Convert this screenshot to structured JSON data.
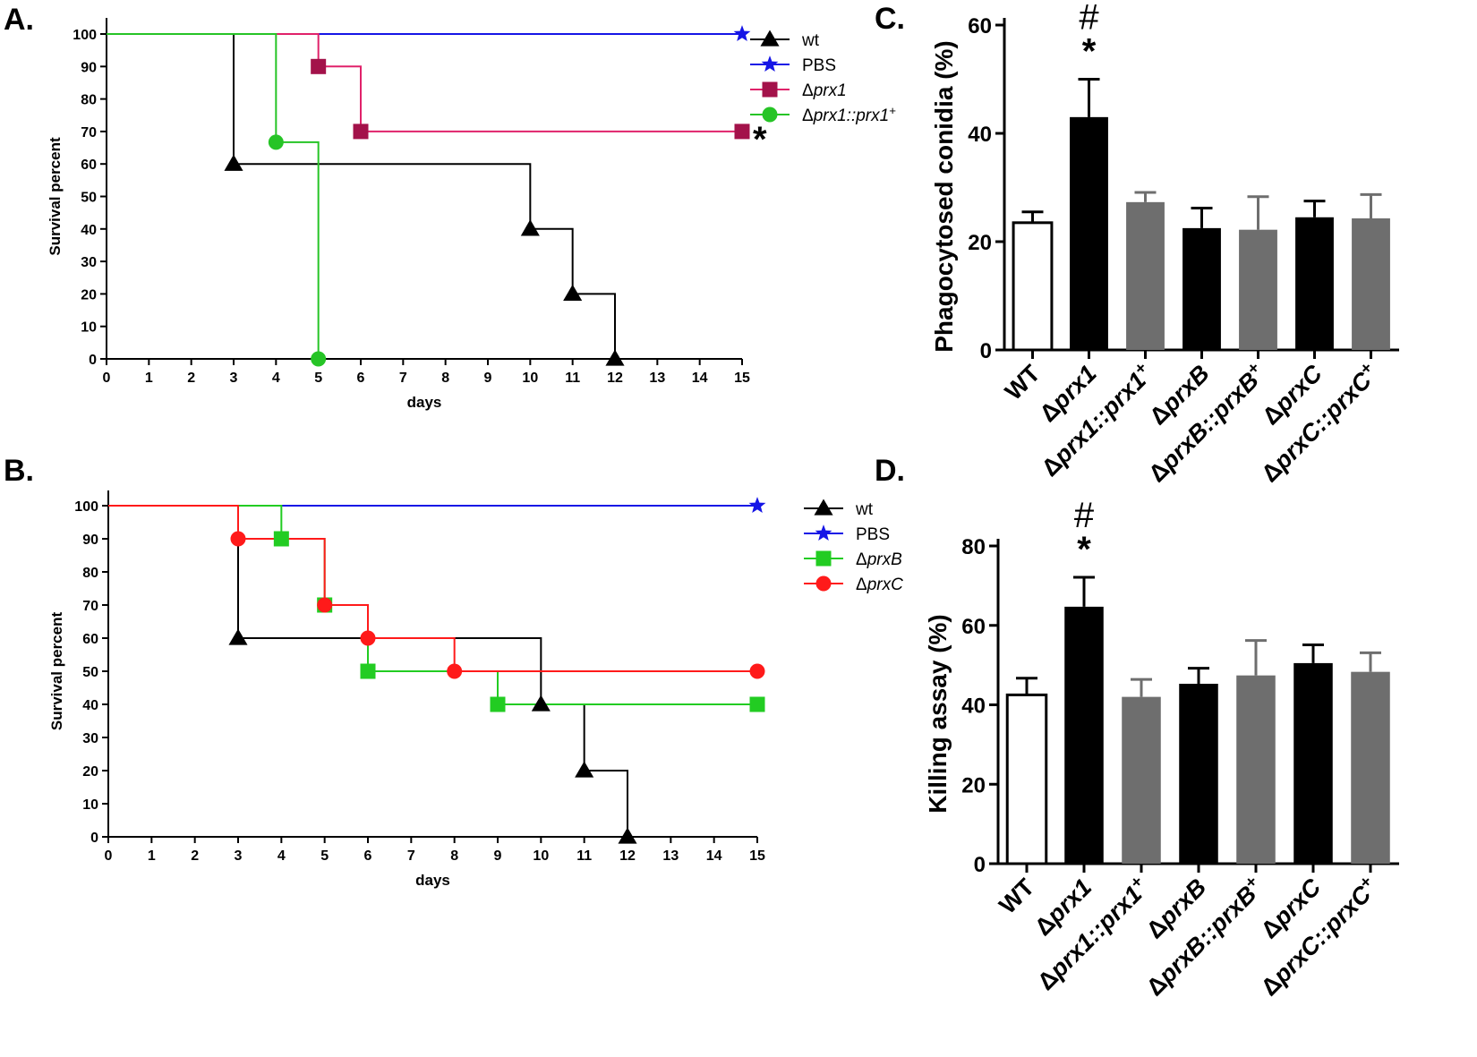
{
  "colors": {
    "wt": "#000000",
    "PBS": "#1515e6",
    "prx1": "#a3124a",
    "prx1_line": "#e0226a",
    "prx1comp": "#26c426",
    "prxB": "#22cc22",
    "prxC": "#ff1a1a",
    "bar_black": "#000000",
    "bar_gray": "#6e6e6e",
    "bar_white": "#ffffff"
  },
  "chart_data": [
    {
      "id": "A",
      "panel_label": "A.",
      "type": "line",
      "subtype": "kaplan-meier",
      "xlabel": "days",
      "ylabel": "Survival percent",
      "xlim": [
        0,
        15
      ],
      "ylim": [
        0,
        100
      ],
      "xticks": [
        0,
        1,
        2,
        3,
        4,
        5,
        6,
        7,
        8,
        9,
        10,
        11,
        12,
        13,
        14,
        15
      ],
      "yticks": [
        0,
        10,
        20,
        30,
        40,
        50,
        60,
        70,
        80,
        90,
        100
      ],
      "significance_label": "*",
      "series": [
        {
          "key": "wt",
          "name": "wt",
          "marker": "triangle",
          "steps": [
            [
              0,
              100
            ],
            [
              3,
              60
            ],
            [
              10,
              40
            ],
            [
              11,
              20
            ],
            [
              12,
              0
            ]
          ],
          "markers": [
            [
              3,
              60
            ],
            [
              10,
              40
            ],
            [
              11,
              20
            ],
            [
              12,
              0
            ]
          ]
        },
        {
          "key": "PBS",
          "name": "PBS",
          "marker": "star",
          "steps": [
            [
              0,
              100
            ],
            [
              15,
              100
            ]
          ],
          "markers": [
            [
              15,
              100
            ]
          ]
        },
        {
          "key": "prx1",
          "name": "Δprx1",
          "marker": "square",
          "steps": [
            [
              0,
              100
            ],
            [
              5,
              90
            ],
            [
              6,
              70
            ],
            [
              15,
              70
            ]
          ],
          "markers": [
            [
              5,
              90
            ],
            [
              6,
              70
            ],
            [
              15,
              70
            ]
          ]
        },
        {
          "key": "prx1comp",
          "name": "Δprx1::prx1+",
          "marker": "circle",
          "steps": [
            [
              0,
              100
            ],
            [
              4,
              66.7
            ],
            [
              5,
              0
            ]
          ],
          "markers": [
            [
              4,
              66.7
            ],
            [
              5,
              0
            ]
          ]
        }
      ],
      "legend": [
        {
          "key": "wt",
          "pre": "",
          "italic": "",
          "sup": "",
          "plain": "wt"
        },
        {
          "key": "PBS",
          "pre": "",
          "italic": "",
          "sup": "",
          "plain": "PBS"
        },
        {
          "key": "prx1",
          "pre": "Δ",
          "italic": "prx1",
          "sup": "",
          "plain": ""
        },
        {
          "key": "prx1comp",
          "pre": "Δ",
          "italic": "prx1::prx1",
          "sup": "+",
          "plain": ""
        }
      ]
    },
    {
      "id": "B",
      "panel_label": "B.",
      "type": "line",
      "subtype": "kaplan-meier",
      "xlabel": "days",
      "ylabel": "Survival percent",
      "xlim": [
        0,
        15
      ],
      "ylim": [
        0,
        100
      ],
      "xticks": [
        0,
        1,
        2,
        3,
        4,
        5,
        6,
        7,
        8,
        9,
        10,
        11,
        12,
        13,
        14,
        15
      ],
      "yticks": [
        0,
        10,
        20,
        30,
        40,
        50,
        60,
        70,
        80,
        90,
        100
      ],
      "series": [
        {
          "key": "wt",
          "name": "wt",
          "marker": "triangle",
          "steps": [
            [
              0,
              100
            ],
            [
              3,
              60
            ],
            [
              10,
              40
            ],
            [
              11,
              20
            ],
            [
              12,
              0
            ]
          ],
          "markers": [
            [
              3,
              60
            ],
            [
              10,
              40
            ],
            [
              11,
              20
            ],
            [
              12,
              0
            ]
          ]
        },
        {
          "key": "PBS",
          "name": "PBS",
          "marker": "star",
          "steps": [
            [
              0,
              100
            ],
            [
              15,
              100
            ]
          ],
          "markers": [
            [
              15,
              100
            ]
          ]
        },
        {
          "key": "prxB",
          "name": "ΔprxB",
          "marker": "square",
          "steps": [
            [
              0,
              100
            ],
            [
              4,
              90
            ],
            [
              5,
              70
            ],
            [
              6,
              50
            ],
            [
              9,
              40
            ],
            [
              15,
              40
            ]
          ],
          "markers": [
            [
              4,
              90
            ],
            [
              5,
              70
            ],
            [
              6,
              50
            ],
            [
              9,
              40
            ],
            [
              15,
              40
            ]
          ]
        },
        {
          "key": "prxC",
          "name": "ΔprxC",
          "marker": "circle",
          "steps": [
            [
              0,
              100
            ],
            [
              3,
              90
            ],
            [
              5,
              70
            ],
            [
              6,
              60
            ],
            [
              8,
              50
            ],
            [
              15,
              50
            ]
          ],
          "markers": [
            [
              3,
              90
            ],
            [
              5,
              70
            ],
            [
              6,
              60
            ],
            [
              8,
              50
            ],
            [
              15,
              50
            ]
          ]
        }
      ],
      "legend": [
        {
          "key": "wt",
          "pre": "",
          "italic": "",
          "sup": "",
          "plain": "wt"
        },
        {
          "key": "PBS",
          "pre": "",
          "italic": "",
          "sup": "",
          "plain": "PBS"
        },
        {
          "key": "prxB",
          "pre": "Δ",
          "italic": "prxB",
          "sup": "",
          "plain": ""
        },
        {
          "key": "prxC",
          "pre": "Δ",
          "italic": "prxC",
          "sup": "",
          "plain": ""
        }
      ]
    },
    {
      "id": "C",
      "panel_label": "C.",
      "type": "bar",
      "ylabel": "Phagocytosed conidia (%)",
      "ylim": [
        0,
        60
      ],
      "yticks": [
        0,
        20,
        40,
        60
      ],
      "annotation": {
        "index": 1,
        "hash": "#",
        "star": "*"
      },
      "categories": [
        {
          "pre": "WT",
          "italic": "",
          "sup": ""
        },
        {
          "pre": "Δ",
          "italic": "prx1",
          "sup": ""
        },
        {
          "pre": "Δ",
          "italic": "prx1::prx1",
          "sup": "+"
        },
        {
          "pre": "Δ",
          "italic": "prxB",
          "sup": ""
        },
        {
          "pre": "Δ",
          "italic": "prxB::prxB",
          "sup": "+"
        },
        {
          "pre": "Δ",
          "italic": "prxC",
          "sup": ""
        },
        {
          "pre": "Δ",
          "italic": "prxC::prxC",
          "sup": "+"
        }
      ],
      "values": [
        23.5,
        43,
        27.3,
        22.5,
        22.2,
        24.5,
        24.3
      ],
      "errors": [
        2,
        7,
        1.8,
        3.7,
        6.1,
        3,
        4.4
      ],
      "fills": [
        "white",
        "black",
        "gray",
        "black",
        "gray",
        "black",
        "gray"
      ]
    },
    {
      "id": "D",
      "panel_label": "D.",
      "type": "bar",
      "ylabel": "Killing assay (%)",
      "ylim": [
        0,
        80
      ],
      "yticks": [
        0,
        20,
        40,
        60,
        80
      ],
      "annotation": {
        "index": 1,
        "hash": "#",
        "star": "*"
      },
      "categories": [
        {
          "pre": "WT",
          "italic": "",
          "sup": ""
        },
        {
          "pre": "Δ",
          "italic": "prx1",
          "sup": ""
        },
        {
          "pre": "Δ",
          "italic": "prx1::prx1",
          "sup": "+"
        },
        {
          "pre": "Δ",
          "italic": "prxB",
          "sup": ""
        },
        {
          "pre": "Δ",
          "italic": "prxB::prxB",
          "sup": "+"
        },
        {
          "pre": "Δ",
          "italic": "prxC",
          "sup": ""
        },
        {
          "pre": "Δ",
          "italic": "prxC::prxC",
          "sup": "+"
        }
      ],
      "values": [
        42.5,
        64.7,
        42,
        45.3,
        47.4,
        50.5,
        48.3
      ],
      "errors": [
        4.2,
        7.4,
        4.4,
        3.9,
        8.8,
        4.6,
        4.8
      ],
      "fills": [
        "white",
        "black",
        "gray",
        "black",
        "gray",
        "black",
        "gray"
      ]
    }
  ]
}
